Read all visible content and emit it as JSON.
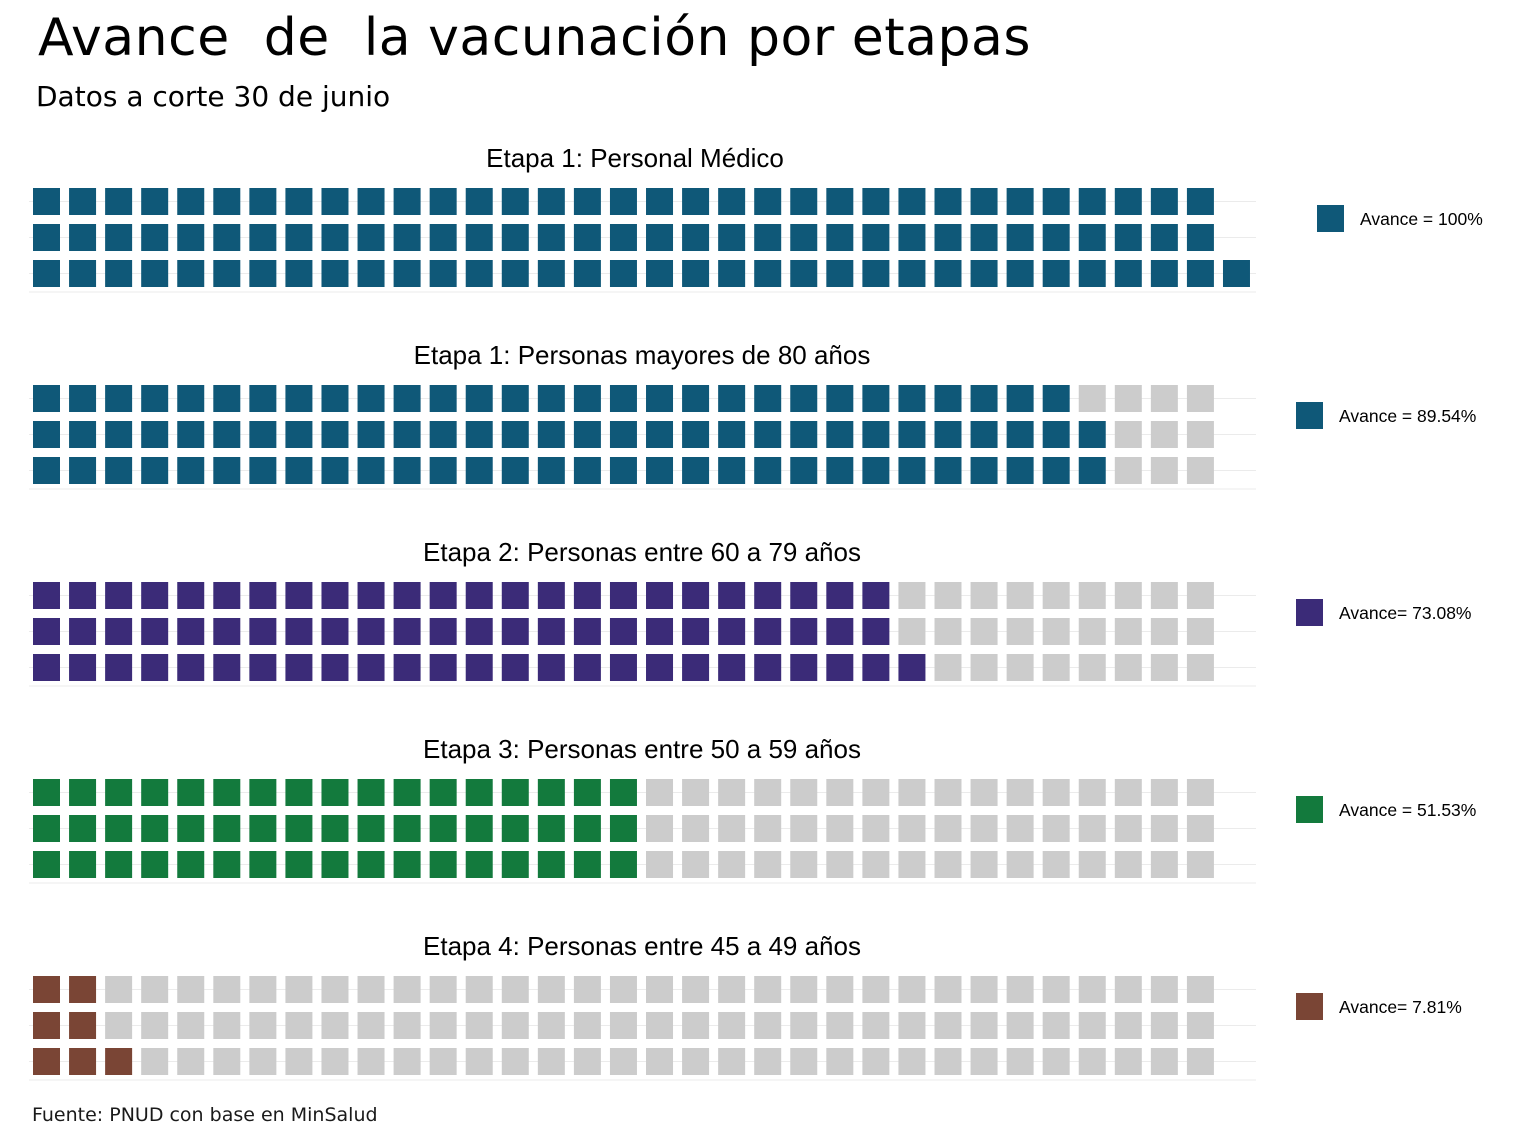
{
  "title": "Avance  de  la vacunación por etapas",
  "subtitle": "Datos a corte 30 de junio",
  "source": "Fuente: PNUD con base en MinSalud",
  "chart_data": [
    {
      "type": "waffle",
      "title": "Etapa 1: Personal Médico",
      "legend_label": "Avance = 100%",
      "progress_percent": 100,
      "filled_color": "#0f5878",
      "empty_color": "#cccccc",
      "filled_tiles_per_row": [
        33,
        33,
        34
      ],
      "total_tiles_per_row": [
        33,
        33,
        34
      ]
    },
    {
      "type": "waffle",
      "title": "Etapa 1: Personas mayores de 80 años",
      "legend_label": "Avance = 89.54%",
      "progress_percent": 89.54,
      "filled_color": "#0f5878",
      "empty_color": "#cccccc",
      "filled_tiles_per_row": [
        29,
        30,
        30
      ],
      "total_tiles_per_row": [
        33,
        33,
        33
      ]
    },
    {
      "type": "waffle",
      "title": "Etapa 2: Personas entre 60 a 79 años",
      "legend_label": "Avance= 73.08%",
      "progress_percent": 73.08,
      "filled_color": "#3b2b78",
      "empty_color": "#cccccc",
      "filled_tiles_per_row": [
        24,
        24,
        25
      ],
      "total_tiles_per_row": [
        33,
        33,
        33
      ]
    },
    {
      "type": "waffle",
      "title": "Etapa 3: Personas entre 50 a 59 años",
      "legend_label": "Avance = 51.53%",
      "progress_percent": 51.53,
      "filled_color": "#137a3d",
      "empty_color": "#cccccc",
      "filled_tiles_per_row": [
        17,
        17,
        17
      ],
      "total_tiles_per_row": [
        33,
        33,
        33
      ]
    },
    {
      "type": "waffle",
      "title": "Etapa 4: Personas entre 45 a 49 años",
      "legend_label": "Avance= 7.81%",
      "progress_percent": 7.81,
      "filled_color": "#7a4535",
      "empty_color": "#cccccc",
      "filled_tiles_per_row": [
        2,
        2,
        3
      ],
      "total_tiles_per_row": [
        33,
        33,
        33
      ]
    }
  ]
}
